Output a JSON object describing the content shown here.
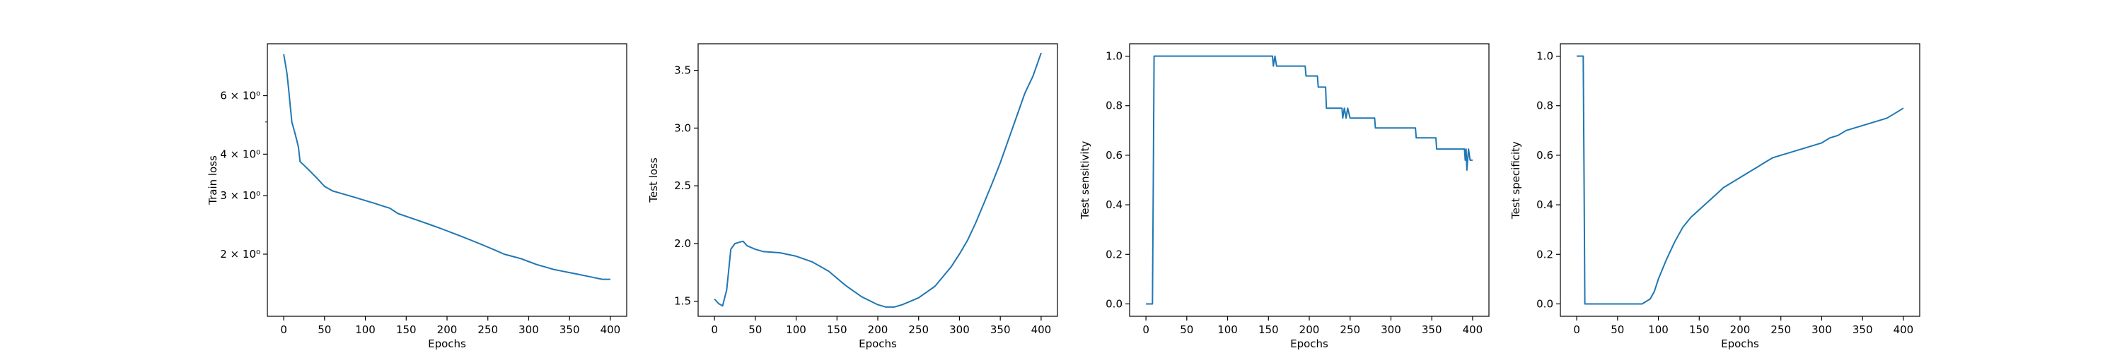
{
  "chart_data": [
    {
      "type": "line",
      "xlabel": "Epochs",
      "ylabel": "Train loss",
      "yscale": "log",
      "xlim": [
        -20,
        420
      ],
      "ylim": [
        1.3,
        8.6
      ],
      "xticks": [
        0,
        50,
        100,
        150,
        200,
        250,
        300,
        350,
        400
      ],
      "yticks": [
        {
          "value": 2,
          "label": "2 × 10⁰"
        },
        {
          "value": 3,
          "label": "3 × 10⁰"
        },
        {
          "value": 4,
          "label": "4 × 10⁰"
        },
        {
          "value": 6,
          "label": "6 × 10⁰"
        }
      ],
      "minor_yticks": [
        5
      ],
      "grid": false,
      "color": "#1f77b4",
      "series": [
        {
          "x": [
            0,
            2,
            4,
            6,
            8,
            10,
            12,
            14,
            16,
            18,
            20,
            25,
            30,
            35,
            40,
            45,
            50,
            60,
            70,
            80,
            90,
            100,
            110,
            120,
            130,
            140,
            150,
            160,
            170,
            180,
            190,
            200,
            210,
            220,
            230,
            240,
            250,
            260,
            270,
            280,
            290,
            300,
            310,
            320,
            330,
            340,
            350,
            360,
            370,
            380,
            390,
            400
          ],
          "y": [
            8.0,
            7.5,
            7.0,
            6.3,
            5.6,
            5.0,
            4.8,
            4.6,
            4.4,
            4.2,
            3.8,
            3.7,
            3.6,
            3.5,
            3.4,
            3.3,
            3.2,
            3.1,
            3.05,
            3.0,
            2.95,
            2.9,
            2.85,
            2.8,
            2.75,
            2.65,
            2.6,
            2.55,
            2.5,
            2.45,
            2.4,
            2.35,
            2.3,
            2.25,
            2.2,
            2.15,
            2.1,
            2.05,
            2.0,
            1.97,
            1.94,
            1.9,
            1.86,
            1.83,
            1.8,
            1.78,
            1.76,
            1.74,
            1.72,
            1.7,
            1.68,
            1.68
          ]
        }
      ]
    },
    {
      "type": "line",
      "xlabel": "Epochs",
      "ylabel": "Test loss",
      "xlim": [
        -20,
        420
      ],
      "ylim": [
        1.37,
        3.73
      ],
      "xticks": [
        0,
        50,
        100,
        150,
        200,
        250,
        300,
        350,
        400
      ],
      "yticks": [
        1.5,
        2.0,
        2.5,
        3.0,
        3.5
      ],
      "grid": false,
      "color": "#1f77b4",
      "series": [
        {
          "x": [
            0,
            5,
            10,
            15,
            20,
            25,
            30,
            35,
            40,
            50,
            60,
            80,
            100,
            120,
            140,
            160,
            180,
            200,
            210,
            220,
            230,
            250,
            270,
            290,
            300,
            310,
            320,
            330,
            340,
            350,
            360,
            370,
            380,
            390,
            400
          ],
          "y": [
            1.52,
            1.48,
            1.46,
            1.6,
            1.95,
            2.0,
            2.01,
            2.02,
            1.98,
            1.95,
            1.93,
            1.92,
            1.89,
            1.84,
            1.76,
            1.64,
            1.54,
            1.47,
            1.45,
            1.45,
            1.47,
            1.53,
            1.63,
            1.8,
            1.91,
            2.03,
            2.18,
            2.35,
            2.52,
            2.7,
            2.9,
            3.1,
            3.3,
            3.45,
            3.65
          ]
        }
      ]
    },
    {
      "type": "line",
      "xlabel": "Epochs",
      "ylabel": "Test sensitivity",
      "xlim": [
        -20,
        420
      ],
      "ylim": [
        -0.05,
        1.05
      ],
      "xticks": [
        0,
        50,
        100,
        150,
        200,
        250,
        300,
        350,
        400
      ],
      "yticks": [
        0.0,
        0.2,
        0.4,
        0.6,
        0.8,
        1.0
      ],
      "grid": false,
      "color": "#1f77b4",
      "series": [
        {
          "x": [
            0,
            8,
            9,
            10,
            12,
            155,
            156,
            158,
            160,
            162,
            170,
            195,
            196,
            210,
            211,
            220,
            221,
            240,
            241,
            243,
            245,
            247,
            250,
            280,
            281,
            330,
            331,
            355,
            356,
            390,
            391,
            392,
            393,
            395,
            397,
            400
          ],
          "y": [
            0.0,
            0.0,
            0.5,
            1.0,
            1.0,
            1.0,
            0.96,
            1.0,
            0.96,
            0.96,
            0.96,
            0.96,
            0.92,
            0.92,
            0.875,
            0.875,
            0.79,
            0.79,
            0.75,
            0.79,
            0.75,
            0.79,
            0.75,
            0.75,
            0.71,
            0.71,
            0.67,
            0.67,
            0.625,
            0.625,
            0.58,
            0.625,
            0.54,
            0.625,
            0.58,
            0.58
          ]
        }
      ]
    },
    {
      "type": "line",
      "xlabel": "Epochs",
      "ylabel": "Test specificity",
      "xlim": [
        -20,
        420
      ],
      "ylim": [
        -0.05,
        1.05
      ],
      "xticks": [
        0,
        50,
        100,
        150,
        200,
        250,
        300,
        350,
        400
      ],
      "yticks": [
        0.0,
        0.2,
        0.4,
        0.6,
        0.8,
        1.0
      ],
      "grid": false,
      "color": "#1f77b4",
      "series": [
        {
          "x": [
            0,
            8,
            9,
            10,
            12,
            80,
            90,
            95,
            100,
            105,
            110,
            120,
            130,
            140,
            150,
            160,
            170,
            180,
            190,
            200,
            210,
            220,
            230,
            240,
            250,
            260,
            270,
            280,
            290,
            300,
            310,
            320,
            330,
            340,
            350,
            360,
            370,
            380,
            390,
            400
          ],
          "y": [
            1.0,
            1.0,
            0.5,
            0.0,
            0.0,
            0.0,
            0.02,
            0.05,
            0.1,
            0.14,
            0.18,
            0.25,
            0.31,
            0.35,
            0.38,
            0.41,
            0.44,
            0.47,
            0.49,
            0.51,
            0.53,
            0.55,
            0.57,
            0.59,
            0.6,
            0.61,
            0.62,
            0.63,
            0.64,
            0.65,
            0.67,
            0.68,
            0.7,
            0.71,
            0.72,
            0.73,
            0.74,
            0.75,
            0.77,
            0.79
          ]
        }
      ]
    }
  ]
}
